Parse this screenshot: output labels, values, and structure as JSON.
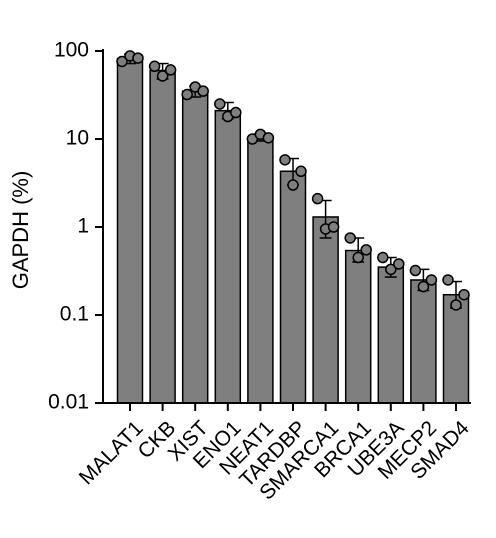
{
  "chart_data": {
    "type": "bar",
    "ylabel": "GAPDH (%)",
    "xlabel": "",
    "yscale": "log",
    "ylim": [
      0.01,
      100
    ],
    "yticks": [
      0.01,
      0.1,
      1,
      10,
      100
    ],
    "ytick_labels": [
      "0.01",
      "0.1",
      "1",
      "10",
      "100"
    ],
    "grid": false,
    "bar_color": "#7f7f7f",
    "point_color": "#7f7f7f",
    "categories": [
      "MALAT1",
      "CKB",
      "XIST",
      "ENO1",
      "NEAT1",
      "TARDBP",
      "SMARCA1",
      "BRCA1",
      "UBE3A",
      "MECP2",
      "SMAD4"
    ],
    "values": [
      82,
      60,
      35,
      21,
      10.5,
      4.3,
      1.3,
      0.54,
      0.35,
      0.25,
      0.17
    ],
    "error_bars": [
      [
        72,
        92
      ],
      [
        48,
        72
      ],
      [
        30,
        40
      ],
      [
        17,
        26
      ],
      [
        9.5,
        11.5
      ],
      [
        3.0,
        6.0
      ],
      [
        0.75,
        2.0
      ],
      [
        0.4,
        0.75
      ],
      [
        0.27,
        0.45
      ],
      [
        0.19,
        0.33
      ],
      [
        0.12,
        0.24
      ]
    ],
    "replicates": [
      [
        76,
        88,
        83
      ],
      [
        67,
        52,
        61
      ],
      [
        32,
        39,
        35
      ],
      [
        25,
        18,
        20
      ],
      [
        10,
        11.3,
        10.3
      ],
      [
        5.8,
        3.0,
        4.3
      ],
      [
        2.1,
        0.95,
        1.0
      ],
      [
        0.75,
        0.45,
        0.55
      ],
      [
        0.45,
        0.33,
        0.38
      ],
      [
        0.32,
        0.21,
        0.25
      ],
      [
        0.25,
        0.13,
        0.17
      ]
    ]
  }
}
